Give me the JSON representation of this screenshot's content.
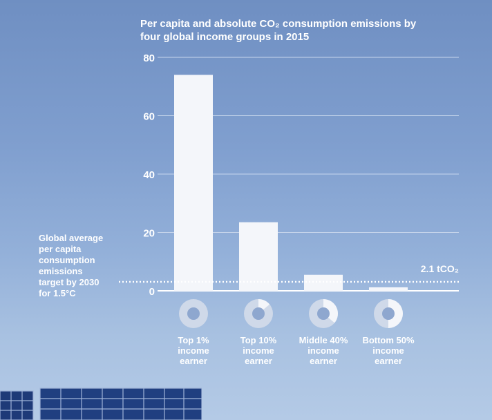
{
  "chart_data": {
    "type": "bar",
    "title": "Per capita and absolute CO₂ consumption emissions by four global income groups in 2015",
    "title_lines": [
      "Per capita and absolute CO₂ consumption emissions by",
      "four global income groups in 2015"
    ],
    "categories": [
      "Top 1% income earner",
      "Top 10% income earner",
      "Middle 40% income earner",
      "Bottom 50% income earner"
    ],
    "category_lines": [
      [
        "Top 1%",
        "income",
        "earner"
      ],
      [
        "Top 10%",
        "income",
        "earner"
      ],
      [
        "Middle 40%",
        "income",
        "earner"
      ],
      [
        "Bottom 50%",
        "income",
        "earner"
      ]
    ],
    "values": [
      74,
      23.5,
      5.5,
      1.2
    ],
    "donut_share": [
      0.0,
      0.14,
      0.36,
      0.5
    ],
    "ylim": [
      0,
      80
    ],
    "yticks": [
      0,
      20,
      40,
      60,
      80
    ],
    "grid": true,
    "target": {
      "value": 2.1,
      "label": "2.1 tCO₂",
      "description_lines": [
        "Global average",
        "per capita",
        "consumption",
        "emissions",
        "target by 2030",
        "for 1.5°C"
      ]
    },
    "colors": {
      "bar": "#f4f6fa",
      "text": "#ffffff",
      "grid": "#c8d6ec",
      "donut_track": "#cfd9e9",
      "donut_fill": "#f4f6fa",
      "donut_hole": "#8ea7cf"
    }
  }
}
